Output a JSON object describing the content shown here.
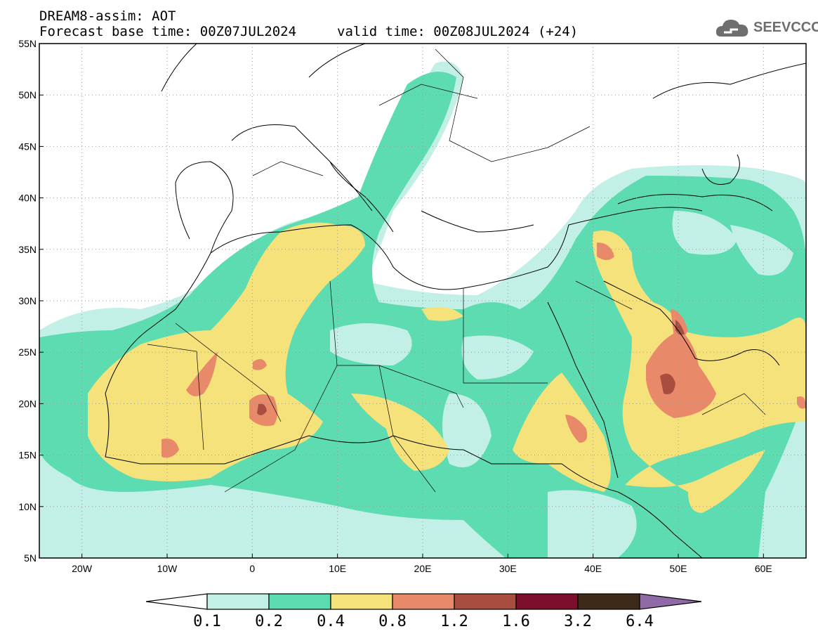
{
  "header": {
    "title": "DREAM8-assim: AOT",
    "base_time": "Forecast base time: 00Z07JUL2024",
    "valid_time": "valid time: 00Z08JUL2024 (+24)"
  },
  "logo": {
    "text": "SEEVCCC",
    "icon": "cloud-icon"
  },
  "map": {
    "variable": "AOT",
    "lon_range": [
      -25,
      65
    ],
    "lat_range": [
      5,
      55
    ],
    "lat_ticks": [
      "55N",
      "50N",
      "45N",
      "40N",
      "35N",
      "30N",
      "25N",
      "20N",
      "15N",
      "10N",
      "5N"
    ],
    "lon_ticks": [
      "20W",
      "10W",
      "0",
      "10E",
      "20E",
      "30E",
      "40E",
      "50E",
      "60E"
    ],
    "grid": "dotted"
  },
  "colorbar": {
    "labels": [
      "0.1",
      "0.2",
      "0.4",
      "0.8",
      "1.2",
      "1.6",
      "3.2",
      "6.4"
    ],
    "colors": [
      "#ffffff",
      "#c2f0e6",
      "#5ddcb2",
      "#f5e27a",
      "#e8896a",
      "#a94d40",
      "#7b0f2b",
      "#3d2a18",
      "#8f6aa6"
    ]
  }
}
